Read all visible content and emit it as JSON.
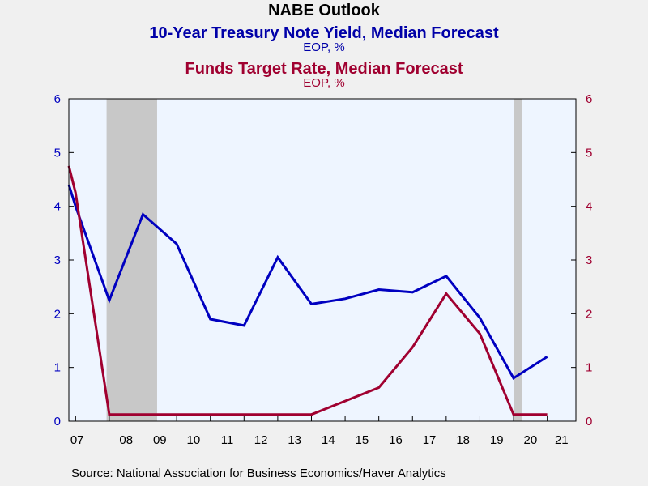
{
  "titles": {
    "main": "NABE Outlook",
    "series1_title": "10-Year Treasury Note Yield, Median Forecast",
    "series1_unit": "EOP, %",
    "series2_title": "Funds Target Rate, Median Forecast",
    "series2_unit": "EOP, %"
  },
  "source": "Source:  National Association for Business Economics/Haver Analytics",
  "colors": {
    "series1": "#0000c0",
    "series2": "#a00030",
    "plot_background": "#eef5ff",
    "recession": "#c8c8c8",
    "page_background": "#f0f0f0"
  },
  "chart_data": {
    "type": "line",
    "title": "NABE Outlook",
    "x": [
      2006.8,
      2007,
      2008,
      2009,
      2010,
      2011,
      2012,
      2013,
      2014,
      2015,
      2016,
      2017,
      2018,
      2019,
      2020,
      2021
    ],
    "x_tick_labels": [
      "07",
      "08",
      "09",
      "10",
      "11",
      "12",
      "13",
      "14",
      "15",
      "16",
      "17",
      "18",
      "19",
      "20",
      "21"
    ],
    "y_tick_labels": [
      "0",
      "1",
      "2",
      "3",
      "4",
      "5",
      "6"
    ],
    "ylim_left": [
      0,
      6
    ],
    "ylim_right": [
      0,
      6
    ],
    "recession_shading": [
      [
        2007.92,
        2009.42
      ],
      [
        2020.0,
        2020.25
      ]
    ],
    "grid": false,
    "legend": "none (series titles above chart)",
    "series": [
      {
        "name": "10-Year Treasury Note Yield, Median Forecast",
        "axis": "left",
        "values": [
          4.4,
          4.0,
          2.25,
          3.85,
          3.3,
          1.9,
          1.78,
          3.05,
          2.18,
          2.28,
          2.45,
          2.4,
          2.7,
          1.92,
          0.8,
          1.2
        ]
      },
      {
        "name": "Funds Target Rate, Median Forecast",
        "axis": "right",
        "values": [
          4.75,
          4.25,
          0.125,
          0.125,
          0.125,
          0.125,
          0.125,
          0.125,
          0.125,
          0.375,
          0.625,
          1.375,
          2.375,
          1.625,
          0.125,
          0.125
        ]
      }
    ]
  }
}
